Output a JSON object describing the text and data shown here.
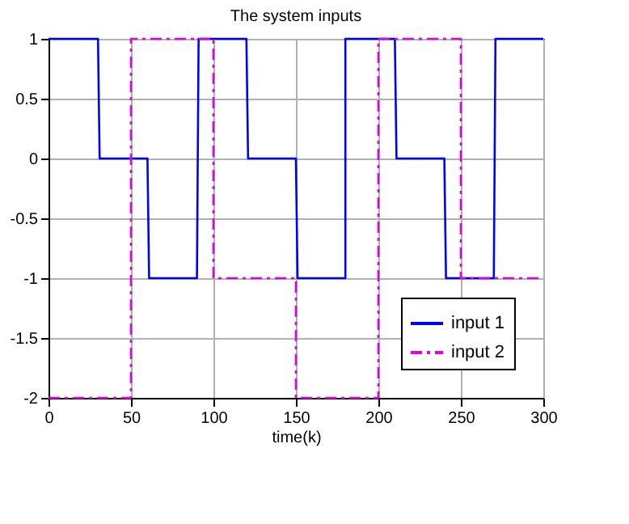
{
  "chart_data": {
    "type": "line",
    "title": "The system inputs",
    "xlabel": "time(k)",
    "xlim": [
      0,
      300
    ],
    "xticks": [
      0,
      50,
      100,
      150,
      200,
      250,
      300
    ],
    "ylim": [
      -2,
      1
    ],
    "yticks": [
      -2,
      -1.5,
      -1,
      -0.5,
      0,
      0.5,
      1
    ],
    "grid": true,
    "legend": "bottom right",
    "series": [
      {
        "name": "input 1",
        "color": "#0000ff",
        "line_style": "solid",
        "x": [
          0,
          30,
          31,
          60,
          61,
          90,
          91,
          120,
          121,
          150,
          151,
          180,
          180,
          210,
          211,
          240,
          241,
          270,
          271,
          300
        ],
        "values": [
          1,
          1,
          0,
          0,
          -1,
          -1,
          1,
          1,
          0,
          0,
          -1,
          -1,
          1,
          1,
          0,
          0,
          -1,
          -1,
          1,
          1
        ]
      },
      {
        "name": "input 2",
        "color": "#e000e0",
        "line_style": "dashed",
        "x": [
          0,
          50,
          50,
          100,
          100,
          150,
          150,
          200,
          200,
          250,
          250,
          300
        ],
        "values": [
          -2,
          -2,
          1,
          1,
          -1,
          -1,
          -2,
          -2,
          1,
          1,
          -1,
          -1
        ]
      }
    ]
  }
}
